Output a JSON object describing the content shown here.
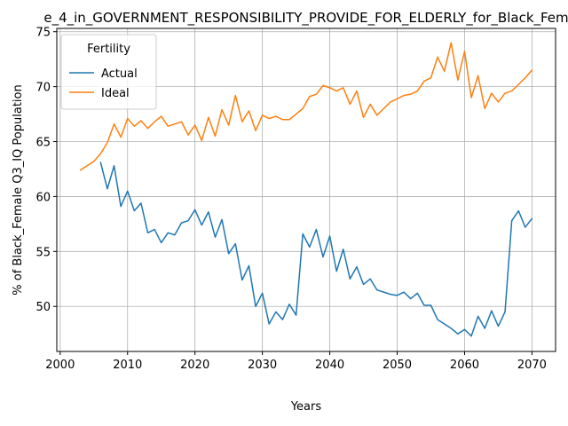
{
  "chart_data": {
    "type": "line",
    "title": "e_4_in_GOVERNMENT_RESPONSIBILITY_PROVIDE_FOR_ELDERLY_for_Black_Fem",
    "xlabel": "Years",
    "ylabel": "% of Black_Female Q3_IQ Population",
    "xlim": [
      1999.5,
      2073.5
    ],
    "ylim": [
      45.9,
      75.3
    ],
    "xticks": [
      2000,
      2010,
      2020,
      2030,
      2040,
      2050,
      2060,
      2070
    ],
    "yticks": [
      50,
      55,
      60,
      65,
      70,
      75
    ],
    "grid": true,
    "legend": {
      "title": "Fertility",
      "placement": "upper-left"
    },
    "series": [
      {
        "name": "Actual",
        "color": "#1f77b4",
        "x": [
          2006,
          2007,
          2008,
          2009,
          2010,
          2011,
          2012,
          2013,
          2014,
          2015,
          2016,
          2017,
          2018,
          2019,
          2020,
          2021,
          2022,
          2023,
          2024,
          2025,
          2026,
          2027,
          2028,
          2029,
          2030,
          2031,
          2032,
          2033,
          2034,
          2035,
          2036,
          2037,
          2038,
          2039,
          2040,
          2041,
          2042,
          2043,
          2044,
          2045,
          2046,
          2047,
          2048,
          2049,
          2050,
          2051,
          2052,
          2053,
          2054,
          2055,
          2056,
          2057,
          2058,
          2059,
          2060,
          2061,
          2062,
          2063,
          2064,
          2065,
          2066,
          2067,
          2068,
          2069,
          2070
        ],
        "values": [
          63.1,
          60.7,
          62.8,
          59.1,
          60.5,
          58.7,
          59.4,
          56.7,
          57.0,
          55.8,
          56.7,
          56.5,
          57.6,
          57.8,
          58.8,
          57.4,
          58.6,
          56.3,
          57.9,
          54.8,
          55.7,
          52.4,
          53.7,
          50.0,
          51.2,
          48.4,
          49.5,
          48.8,
          50.2,
          49.2,
          56.6,
          55.4,
          57.0,
          54.5,
          56.4,
          53.2,
          55.2,
          52.5,
          53.6,
          52.0,
          52.5,
          51.5,
          51.3,
          51.1,
          51.0,
          51.3,
          50.7,
          51.2,
          50.1,
          50.1,
          48.8,
          48.4,
          48.0,
          47.5,
          47.9,
          47.3,
          49.1,
          48.0,
          49.6,
          48.2,
          49.5,
          57.8,
          58.7,
          57.2,
          58.0
        ]
      },
      {
        "name": "Ideal",
        "color": "#ff7f0e",
        "x": [
          2003,
          2004,
          2005,
          2006,
          2007,
          2008,
          2009,
          2010,
          2011,
          2012,
          2013,
          2014,
          2015,
          2016,
          2017,
          2018,
          2019,
          2020,
          2021,
          2022,
          2023,
          2024,
          2025,
          2026,
          2027,
          2028,
          2029,
          2030,
          2031,
          2032,
          2033,
          2034,
          2035,
          2036,
          2037,
          2038,
          2039,
          2040,
          2041,
          2042,
          2043,
          2044,
          2045,
          2046,
          2047,
          2048,
          2049,
          2050,
          2051,
          2052,
          2053,
          2054,
          2055,
          2056,
          2057,
          2058,
          2059,
          2060,
          2061,
          2062,
          2063,
          2064,
          2065,
          2066,
          2067,
          2068,
          2069,
          2070
        ],
        "values": [
          62.4,
          62.8,
          63.2,
          63.9,
          64.9,
          66.6,
          65.4,
          67.1,
          66.4,
          66.9,
          66.2,
          66.8,
          67.3,
          66.4,
          66.6,
          66.8,
          65.6,
          66.5,
          65.1,
          67.2,
          65.5,
          67.9,
          66.5,
          69.2,
          66.8,
          67.8,
          66.0,
          67.4,
          67.1,
          67.3,
          67.0,
          67.0,
          67.5,
          68.0,
          69.1,
          69.3,
          70.1,
          69.9,
          69.6,
          69.9,
          68.4,
          69.6,
          67.2,
          68.4,
          67.4,
          68.0,
          68.6,
          68.9,
          69.2,
          69.3,
          69.6,
          70.5,
          70.8,
          72.7,
          71.4,
          74.0,
          70.6,
          73.2,
          69.0,
          71.0,
          68.0,
          69.4,
          68.6,
          69.4,
          69.6,
          70.2,
          70.8,
          71.5
        ]
      }
    ]
  }
}
